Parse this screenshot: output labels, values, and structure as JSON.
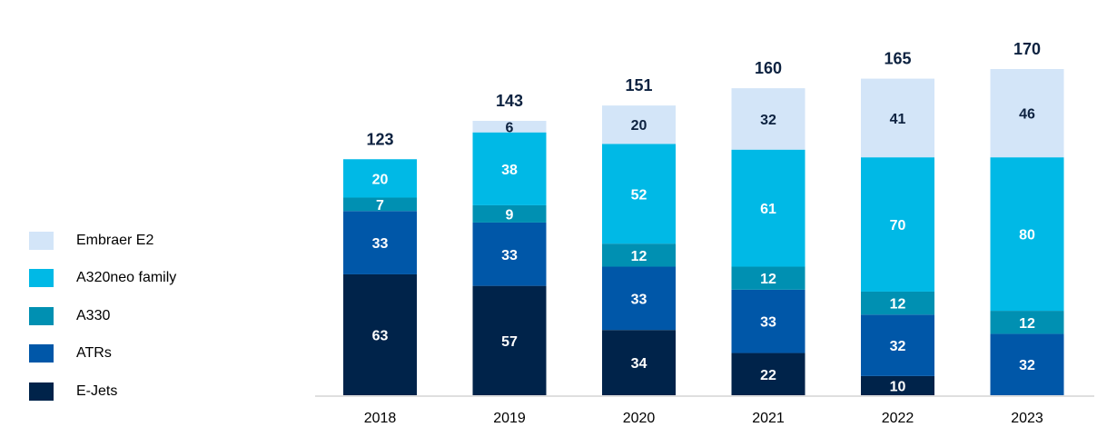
{
  "chart_data": {
    "type": "bar",
    "stacked": true,
    "categories": [
      "2018",
      "2019",
      "2020",
      "2021",
      "2022",
      "2023"
    ],
    "series": [
      {
        "name": "E-Jets",
        "color": "#00234a",
        "label_color": "#ffffff",
        "values": [
          63,
          57,
          34,
          22,
          10,
          0
        ]
      },
      {
        "name": "ATRs",
        "color": "#0057a8",
        "label_color": "#ffffff",
        "values": [
          33,
          33,
          33,
          33,
          32,
          32
        ]
      },
      {
        "name": "A330",
        "color": "#0090b2",
        "label_color": "#ffffff",
        "values": [
          7,
          9,
          12,
          12,
          12,
          12
        ]
      },
      {
        "name": "A320neo family",
        "color": "#00b9e6",
        "label_color": "#ffffff",
        "values": [
          20,
          38,
          52,
          61,
          70,
          80
        ]
      },
      {
        "name": "Embraer E2",
        "color": "#d3e5f8",
        "label_color": "#0d2240",
        "values": [
          0,
          6,
          20,
          32,
          41,
          46
        ]
      }
    ],
    "totals": [
      123,
      143,
      151,
      160,
      165,
      170
    ],
    "ylim": [
      0,
      170
    ],
    "title": "",
    "xlabel": "",
    "ylabel": "",
    "grid": false,
    "legend": {
      "position": "left",
      "order": [
        "Embraer E2",
        "A320neo family",
        "A330",
        "ATRs",
        "E-Jets"
      ]
    }
  }
}
